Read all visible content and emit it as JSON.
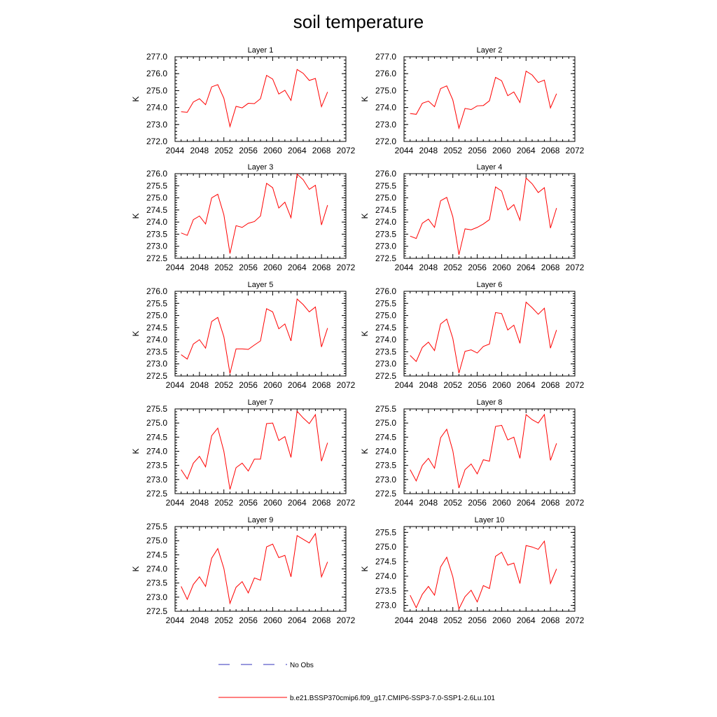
{
  "figure": {
    "title": "soil temperature"
  },
  "legend": {
    "obs_label": "No Obs",
    "obs_color": "#3333bb",
    "model_label": "b.e21.BSSP370cmip6.f09_g17.CMIP6-SSP3-7.0-SSP1-2.6Lu.101",
    "model_color": "#ff0000"
  },
  "chart_data": [
    {
      "type": "line",
      "title": "Layer 1",
      "ylabel": "K",
      "xlim": [
        2044,
        2072
      ],
      "xticks": [
        2044,
        2048,
        2052,
        2056,
        2060,
        2064,
        2068,
        2072
      ],
      "ylim": [
        272.0,
        277.0
      ],
      "yticks": [
        "272.0",
        "273.0",
        "274.0",
        "275.0",
        "276.0",
        "277.0"
      ],
      "x": [
        2045,
        2046,
        2047,
        2048,
        2049,
        2050,
        2051,
        2052,
        2053,
        2054,
        2055,
        2056,
        2057,
        2058,
        2059,
        2060,
        2061,
        2062,
        2063,
        2064,
        2065,
        2066,
        2067,
        2068,
        2069
      ],
      "series": [
        {
          "values": [
            273.75,
            273.72,
            274.33,
            274.52,
            274.17,
            275.22,
            275.35,
            274.55,
            272.88,
            274.07,
            273.98,
            274.25,
            274.23,
            274.52,
            275.9,
            275.68,
            274.8,
            275.02,
            274.42,
            276.25,
            276.02,
            275.6,
            275.72,
            274.05,
            274.92
          ]
        }
      ]
    },
    {
      "type": "line",
      "title": "Layer 2",
      "ylabel": "K",
      "xlim": [
        2044,
        2072
      ],
      "xticks": [
        2044,
        2048,
        2052,
        2056,
        2060,
        2064,
        2068,
        2072
      ],
      "ylim": [
        272.0,
        277.0
      ],
      "yticks": [
        "272.0",
        "273.0",
        "274.0",
        "275.0",
        "276.0",
        "277.0"
      ],
      "x": [
        2045,
        2046,
        2047,
        2048,
        2049,
        2050,
        2051,
        2052,
        2053,
        2054,
        2055,
        2056,
        2057,
        2058,
        2059,
        2060,
        2061,
        2062,
        2063,
        2064,
        2065,
        2066,
        2067,
        2068,
        2069
      ],
      "series": [
        {
          "values": [
            273.65,
            273.6,
            274.25,
            274.38,
            274.05,
            275.12,
            275.28,
            274.45,
            272.78,
            273.95,
            273.88,
            274.1,
            274.12,
            274.4,
            275.78,
            275.58,
            274.7,
            274.92,
            274.3,
            276.15,
            275.92,
            275.48,
            275.62,
            273.98,
            274.82
          ]
        }
      ]
    },
    {
      "type": "line",
      "title": "Layer 3",
      "ylabel": "K",
      "xlim": [
        2044,
        2072
      ],
      "xticks": [
        2044,
        2048,
        2052,
        2056,
        2060,
        2064,
        2068,
        2072
      ],
      "ylim": [
        272.5,
        276.0
      ],
      "yticks": [
        "272.5",
        "273.0",
        "273.5",
        "274.0",
        "274.5",
        "275.0",
        "275.5",
        "276.0"
      ],
      "x": [
        2045,
        2046,
        2047,
        2048,
        2049,
        2050,
        2051,
        2052,
        2053,
        2054,
        2055,
        2056,
        2057,
        2058,
        2059,
        2060,
        2061,
        2062,
        2063,
        2064,
        2065,
        2066,
        2067,
        2068,
        2069
      ],
      "series": [
        {
          "values": [
            273.55,
            273.45,
            274.1,
            274.25,
            273.92,
            275.0,
            275.15,
            274.3,
            272.7,
            273.85,
            273.78,
            273.95,
            274.02,
            274.25,
            275.6,
            275.42,
            274.58,
            274.82,
            274.18,
            275.98,
            275.75,
            275.35,
            275.52,
            273.88,
            274.7
          ]
        }
      ]
    },
    {
      "type": "line",
      "title": "Layer 4",
      "ylabel": "K",
      "xlim": [
        2044,
        2072
      ],
      "xticks": [
        2044,
        2048,
        2052,
        2056,
        2060,
        2064,
        2068,
        2072
      ],
      "ylim": [
        272.5,
        276.0
      ],
      "yticks": [
        "272.5",
        "273.0",
        "273.5",
        "274.0",
        "274.5",
        "275.0",
        "275.5",
        "276.0"
      ],
      "x": [
        2045,
        2046,
        2047,
        2048,
        2049,
        2050,
        2051,
        2052,
        2053,
        2054,
        2055,
        2056,
        2057,
        2058,
        2059,
        2060,
        2061,
        2062,
        2063,
        2064,
        2065,
        2066,
        2067,
        2068,
        2069
      ],
      "series": [
        {
          "values": [
            273.42,
            273.32,
            273.95,
            274.12,
            273.78,
            274.88,
            275.02,
            274.22,
            272.65,
            273.72,
            273.68,
            273.78,
            273.92,
            274.1,
            275.45,
            275.28,
            274.5,
            274.72,
            274.08,
            275.82,
            275.58,
            275.22,
            275.42,
            273.75,
            274.58
          ]
        }
      ]
    },
    {
      "type": "line",
      "title": "Layer 5",
      "ylabel": "K",
      "xlim": [
        2044,
        2072
      ],
      "xticks": [
        2044,
        2048,
        2052,
        2056,
        2060,
        2064,
        2068,
        2072
      ],
      "ylim": [
        272.5,
        276.0
      ],
      "yticks": [
        "272.5",
        "273.0",
        "273.5",
        "274.0",
        "274.5",
        "275.0",
        "275.5",
        "276.0"
      ],
      "x": [
        2045,
        2046,
        2047,
        2048,
        2049,
        2050,
        2051,
        2052,
        2053,
        2054,
        2055,
        2056,
        2057,
        2058,
        2059,
        2060,
        2061,
        2062,
        2063,
        2064,
        2065,
        2066,
        2067,
        2068,
        2069
      ],
      "series": [
        {
          "values": [
            273.38,
            273.2,
            273.82,
            274.0,
            273.65,
            274.75,
            274.92,
            274.12,
            272.6,
            273.62,
            273.62,
            273.6,
            273.78,
            273.95,
            275.28,
            275.15,
            274.45,
            274.65,
            273.95,
            275.68,
            275.45,
            275.15,
            275.35,
            273.7,
            274.48
          ]
        }
      ]
    },
    {
      "type": "line",
      "title": "Layer 6",
      "ylabel": "K",
      "xlim": [
        2044,
        2072
      ],
      "xticks": [
        2044,
        2048,
        2052,
        2056,
        2060,
        2064,
        2068,
        2072
      ],
      "ylim": [
        272.5,
        276.0
      ],
      "yticks": [
        "272.5",
        "273.0",
        "273.5",
        "274.0",
        "274.5",
        "275.0",
        "275.5",
        "276.0"
      ],
      "x": [
        2045,
        2046,
        2047,
        2048,
        2049,
        2050,
        2051,
        2052,
        2053,
        2054,
        2055,
        2056,
        2057,
        2058,
        2059,
        2060,
        2061,
        2062,
        2063,
        2064,
        2065,
        2066,
        2067,
        2068,
        2069
      ],
      "series": [
        {
          "values": [
            273.35,
            273.1,
            273.68,
            273.9,
            273.55,
            274.65,
            274.85,
            274.05,
            272.62,
            273.52,
            273.58,
            273.45,
            273.72,
            273.82,
            275.12,
            275.08,
            274.4,
            274.6,
            273.85,
            275.55,
            275.32,
            275.05,
            275.3,
            273.65,
            274.4
          ]
        }
      ]
    },
    {
      "type": "line",
      "title": "Layer 7",
      "ylabel": "K",
      "xlim": [
        2044,
        2072
      ],
      "xticks": [
        2044,
        2048,
        2052,
        2056,
        2060,
        2064,
        2068,
        2072
      ],
      "ylim": [
        272.5,
        275.5
      ],
      "yticks": [
        "272.5",
        "273.0",
        "273.5",
        "274.0",
        "274.5",
        "275.0",
        "275.5"
      ],
      "x": [
        2045,
        2046,
        2047,
        2048,
        2049,
        2050,
        2051,
        2052,
        2053,
        2054,
        2055,
        2056,
        2057,
        2058,
        2059,
        2060,
        2061,
        2062,
        2063,
        2064,
        2065,
        2066,
        2067,
        2068,
        2069
      ],
      "series": [
        {
          "values": [
            273.35,
            273.02,
            273.58,
            273.82,
            273.45,
            274.55,
            274.82,
            274.0,
            272.65,
            273.42,
            273.58,
            273.3,
            273.72,
            273.72,
            274.98,
            275.0,
            274.38,
            274.52,
            273.78,
            275.42,
            275.18,
            274.98,
            275.3,
            273.65,
            274.3
          ]
        }
      ]
    },
    {
      "type": "line",
      "title": "Layer 8",
      "ylabel": "K",
      "xlim": [
        2044,
        2072
      ],
      "xticks": [
        2044,
        2048,
        2052,
        2056,
        2060,
        2064,
        2068,
        2072
      ],
      "ylim": [
        272.5,
        275.5
      ],
      "yticks": [
        "272.5",
        "273.0",
        "273.5",
        "274.0",
        "274.5",
        "275.0",
        "275.5"
      ],
      "x": [
        2045,
        2046,
        2047,
        2048,
        2049,
        2050,
        2051,
        2052,
        2053,
        2054,
        2055,
        2056,
        2057,
        2058,
        2059,
        2060,
        2061,
        2062,
        2063,
        2064,
        2065,
        2066,
        2067,
        2068,
        2069
      ],
      "series": [
        {
          "values": [
            273.35,
            272.95,
            273.5,
            273.75,
            273.4,
            274.48,
            274.78,
            274.02,
            272.7,
            273.35,
            273.55,
            273.2,
            273.7,
            273.65,
            274.88,
            274.92,
            274.4,
            274.5,
            273.75,
            275.3,
            275.12,
            275.0,
            275.3,
            273.68,
            274.28
          ]
        }
      ]
    },
    {
      "type": "line",
      "title": "Layer 9",
      "ylabel": "K",
      "xlim": [
        2044,
        2072
      ],
      "xticks": [
        2044,
        2048,
        2052,
        2056,
        2060,
        2064,
        2068,
        2072
      ],
      "ylim": [
        272.5,
        275.5
      ],
      "yticks": [
        "272.5",
        "273.0",
        "273.5",
        "274.0",
        "274.5",
        "275.0",
        "275.5"
      ],
      "x": [
        2045,
        2046,
        2047,
        2048,
        2049,
        2050,
        2051,
        2052,
        2053,
        2054,
        2055,
        2056,
        2057,
        2058,
        2059,
        2060,
        2061,
        2062,
        2063,
        2064,
        2065,
        2066,
        2067,
        2068,
        2069
      ],
      "series": [
        {
          "values": [
            273.38,
            272.92,
            273.45,
            273.72,
            273.38,
            274.38,
            274.72,
            274.02,
            272.78,
            273.35,
            273.55,
            273.15,
            273.68,
            273.6,
            274.78,
            274.88,
            274.4,
            274.48,
            273.72,
            275.18,
            275.05,
            274.92,
            275.25,
            273.72,
            274.25
          ]
        }
      ]
    },
    {
      "type": "line",
      "title": "Layer 10",
      "ylabel": "K",
      "xlim": [
        2044,
        2072
      ],
      "xticks": [
        2044,
        2048,
        2052,
        2056,
        2060,
        2064,
        2068,
        2072
      ],
      "ylim": [
        272.8,
        275.7
      ],
      "yticks": [
        "273.0",
        "273.5",
        "274.0",
        "274.5",
        "275.0",
        "275.5"
      ],
      "ytick_values": [
        273.0,
        273.5,
        274.0,
        274.5,
        275.0,
        275.5
      ],
      "x": [
        2045,
        2046,
        2047,
        2048,
        2049,
        2050,
        2051,
        2052,
        2053,
        2054,
        2055,
        2056,
        2057,
        2058,
        2059,
        2060,
        2061,
        2062,
        2063,
        2064,
        2065,
        2066,
        2067,
        2068,
        2069
      ],
      "series": [
        {
          "values": [
            273.35,
            272.92,
            273.38,
            273.65,
            273.35,
            274.32,
            274.65,
            273.98,
            272.88,
            273.3,
            273.52,
            273.12,
            273.68,
            273.58,
            274.68,
            274.82,
            274.38,
            274.45,
            273.75,
            275.05,
            275.0,
            274.92,
            275.2,
            273.75,
            274.25
          ]
        }
      ]
    }
  ]
}
